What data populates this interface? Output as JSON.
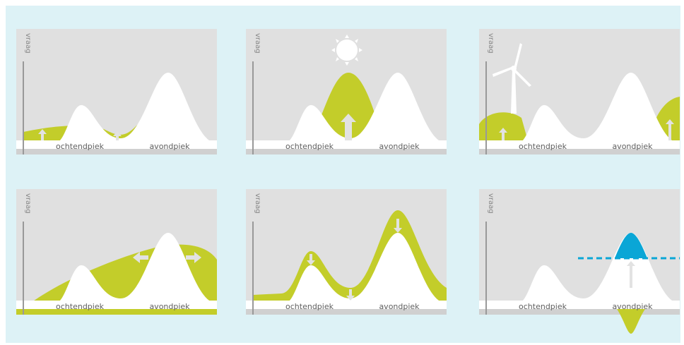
{
  "labels": {
    "y_axis": "vraag",
    "morning_peak": "ochtendpiek",
    "evening_peak": "avondpiek"
  },
  "colors": {
    "background": "#ddf2f6",
    "panel": "#e0e0e0",
    "curve": "#ffffff",
    "green": "#c3cd2a",
    "blue": "#0aa6d6",
    "arrow": "#e2e2e2"
  },
  "panels": [
    {
      "id": "baseline-flexible-demand",
      "icons": [
        "up-arrow-icon",
        "up-arrow-icon"
      ]
    },
    {
      "id": "solar-midday",
      "icons": [
        "sun-icon",
        "up-arrow-icon"
      ]
    },
    {
      "id": "wind-edges",
      "icons": [
        "wind-turbine-icon",
        "up-arrow-icon",
        "up-arrow-icon"
      ]
    },
    {
      "id": "load-spreading",
      "icons": [
        "double-arrow-icon",
        "double-arrow-icon"
      ]
    },
    {
      "id": "peak-reduction",
      "icons": [
        "down-arrow-icon",
        "down-arrow-icon",
        "down-arrow-icon"
      ]
    },
    {
      "id": "peak-shaving-threshold",
      "icons": [
        "up-arrow-icon",
        "dashed-threshold-line"
      ]
    }
  ]
}
